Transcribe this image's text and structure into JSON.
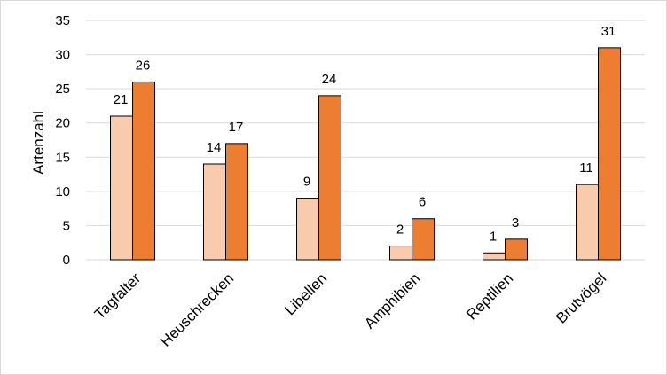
{
  "chart_data": {
    "type": "bar",
    "title": "",
    "xlabel": "",
    "ylabel": "Artenzahl",
    "ylim": [
      0,
      35
    ],
    "yticks": [
      0,
      5,
      10,
      15,
      20,
      25,
      30,
      35
    ],
    "grid": true,
    "legend": "none",
    "categories": [
      "Tagfalter",
      "Heuschrecken",
      "Libellen",
      "Amphibien",
      "Reptilien",
      "Brutvögel"
    ],
    "series": [
      {
        "values": [
          21,
          14,
          9,
          2,
          1,
          11
        ],
        "color": "#f8cbad"
      },
      {
        "values": [
          26,
          17,
          24,
          6,
          3,
          31
        ],
        "color": "#ed7d31"
      }
    ],
    "gridline_color": "#d9d9d9",
    "bar_outline_color": "#000000"
  }
}
